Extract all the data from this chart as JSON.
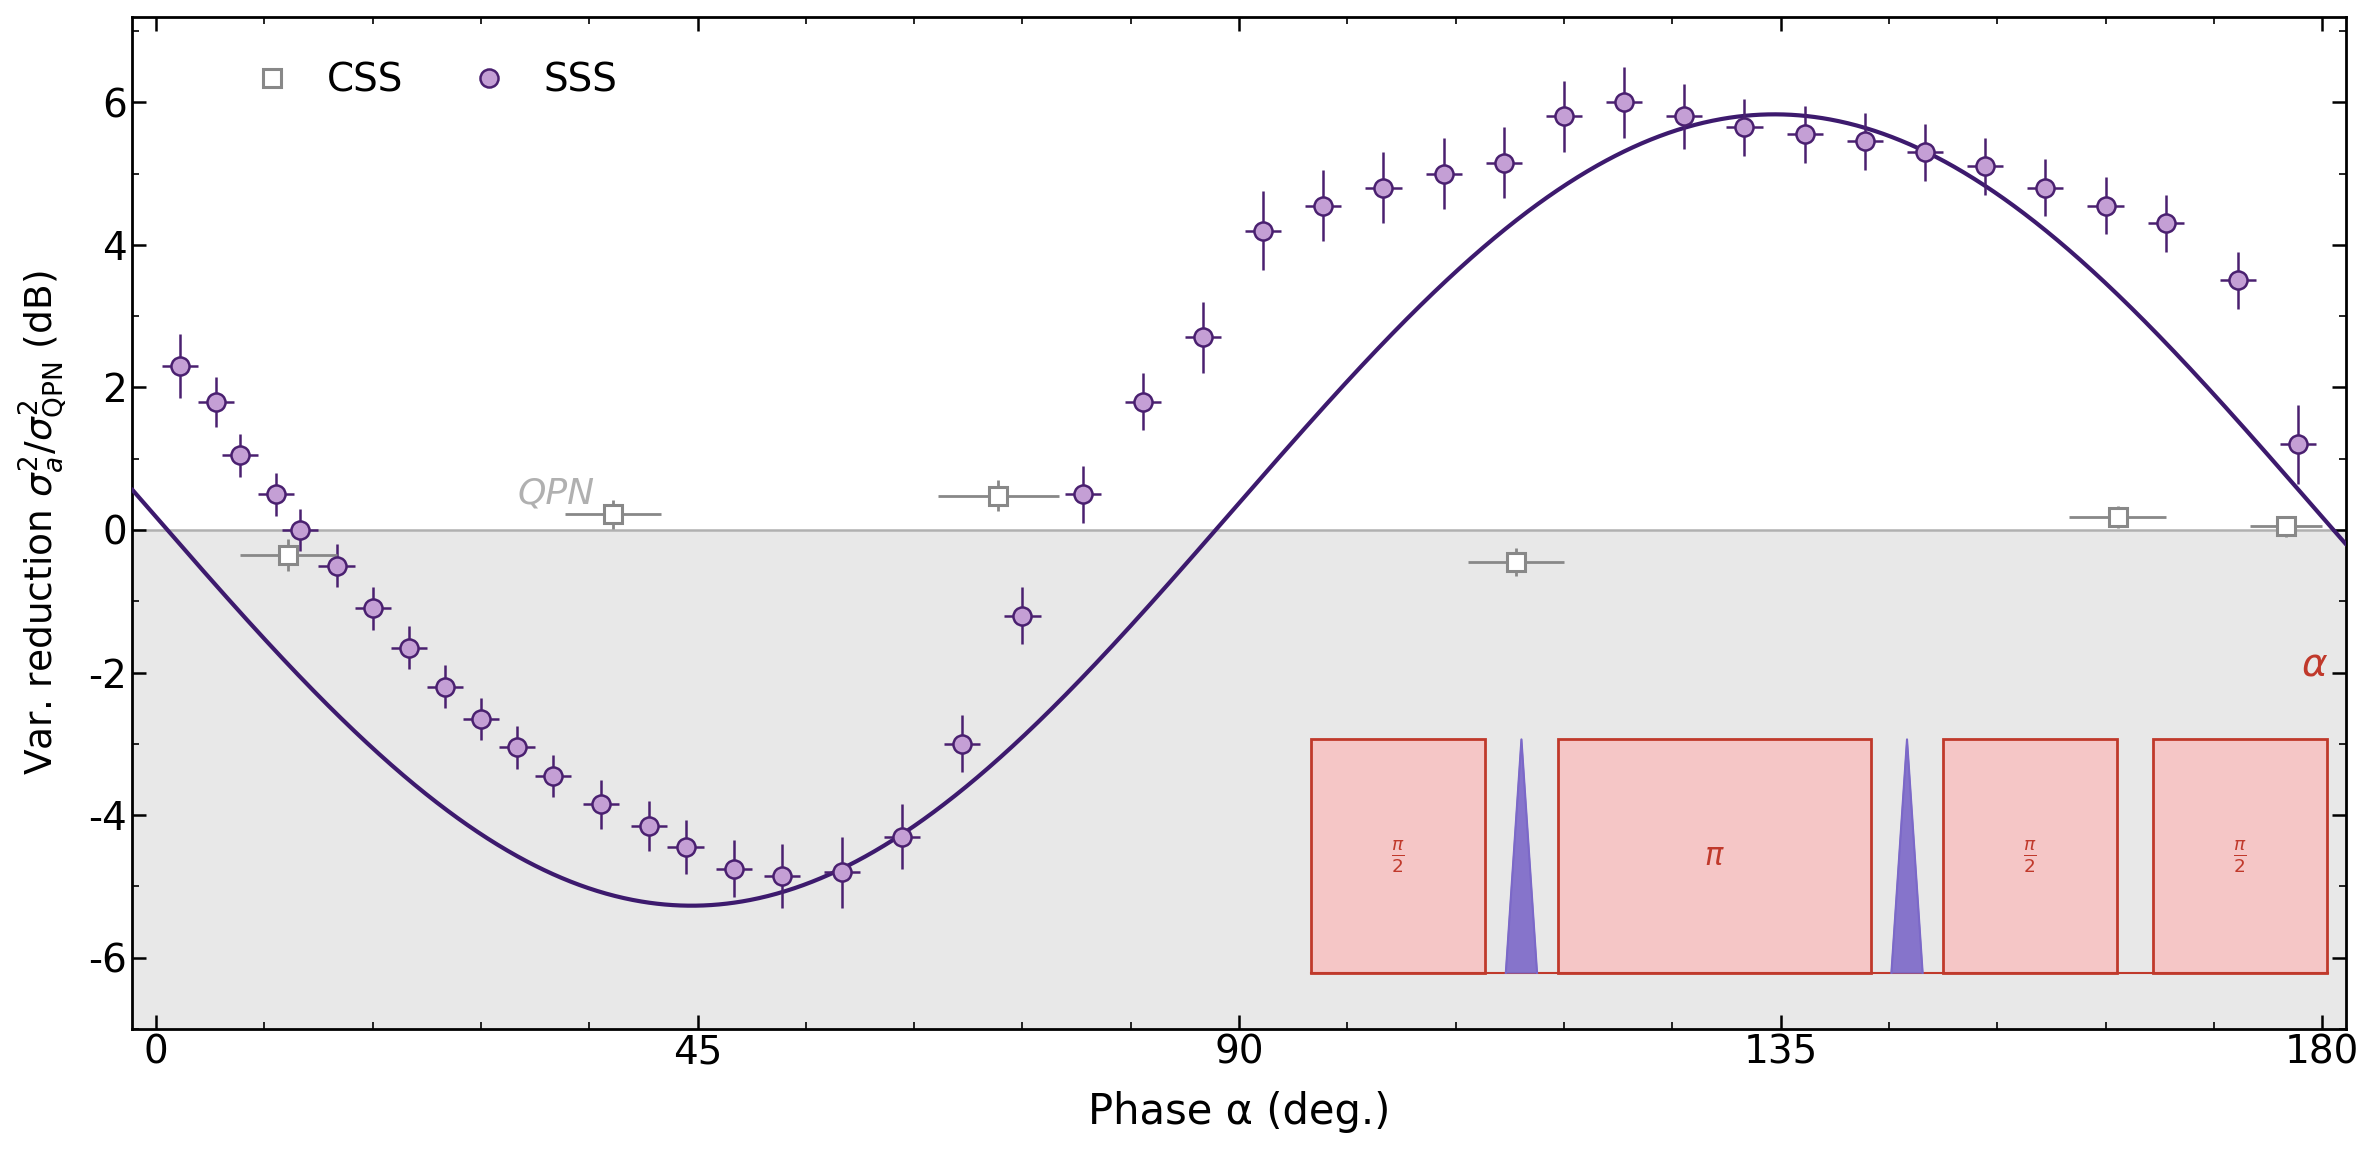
{
  "xlabel": "Phase α (deg.)",
  "xlim": [
    -2,
    182
  ],
  "ylim": [
    -7,
    7.2
  ],
  "yticks": [
    -6,
    -4,
    -2,
    0,
    2,
    4,
    6
  ],
  "xticks": [
    0,
    45,
    90,
    135,
    180
  ],
  "curve_color": "#3d1a6e",
  "sss_face_color": "#c49fd5",
  "sss_edge_color": "#4a2070",
  "css_edge_color": "#888888",
  "background_below": "#e8e8e8",
  "qpn_line_color": "#b0b0b0",
  "qpn_text_color": "#b0b0b0",
  "fit_A": -5.55,
  "fit_B": 0.28,
  "fit_x0": 44.5,
  "sss_x": [
    2,
    5,
    7,
    10,
    12,
    15,
    18,
    21,
    24,
    27,
    30,
    33,
    37,
    41,
    44,
    48,
    52,
    57,
    62,
    67,
    72,
    77,
    82,
    87,
    92,
    97,
    102,
    107,
    112,
    117,
    122,
    127,
    132,
    137,
    142,
    147,
    152,
    157,
    162,
    167,
    173,
    178
  ],
  "sss_y": [
    2.3,
    1.8,
    1.05,
    0.5,
    0.0,
    -0.5,
    -1.1,
    -1.65,
    -2.2,
    -2.65,
    -3.05,
    -3.45,
    -3.85,
    -4.15,
    -4.45,
    -4.75,
    -4.85,
    -4.8,
    -4.3,
    -3.0,
    -1.2,
    0.5,
    1.8,
    2.7,
    4.2,
    4.55,
    4.8,
    5.0,
    5.15,
    5.8,
    6.0,
    5.8,
    5.65,
    5.55,
    5.45,
    5.3,
    5.1,
    4.8,
    4.55,
    4.3,
    3.5,
    1.2
  ],
  "sss_yerr": [
    0.45,
    0.35,
    0.3,
    0.3,
    0.3,
    0.3,
    0.3,
    0.3,
    0.3,
    0.3,
    0.3,
    0.3,
    0.35,
    0.35,
    0.38,
    0.4,
    0.45,
    0.5,
    0.45,
    0.4,
    0.4,
    0.4,
    0.4,
    0.5,
    0.55,
    0.5,
    0.5,
    0.5,
    0.5,
    0.5,
    0.5,
    0.45,
    0.4,
    0.4,
    0.4,
    0.4,
    0.4,
    0.4,
    0.4,
    0.4,
    0.4,
    0.55
  ],
  "sss_xerr": [
    1.5,
    1.5,
    1.5,
    1.5,
    1.5,
    1.5,
    1.5,
    1.5,
    1.5,
    1.5,
    1.5,
    1.5,
    1.5,
    1.5,
    1.5,
    1.5,
    1.5,
    1.5,
    1.5,
    1.5,
    1.5,
    1.5,
    1.5,
    1.5,
    1.5,
    1.5,
    1.5,
    1.5,
    1.5,
    1.5,
    1.5,
    1.5,
    1.5,
    1.5,
    1.5,
    1.5,
    1.5,
    1.5,
    1.5,
    1.5,
    1.5,
    1.5
  ],
  "css_x": [
    11,
    38,
    70,
    113,
    163,
    177
  ],
  "css_y": [
    -0.35,
    0.22,
    0.48,
    -0.45,
    0.18,
    0.05
  ],
  "css_yerr": [
    0.22,
    0.2,
    0.22,
    0.2,
    0.15,
    0.15
  ],
  "css_xerr": [
    4,
    4,
    5,
    4,
    4,
    3
  ],
  "pulse_box_color": "#c0392b",
  "pulse_fill_color": "#f5c6c6",
  "pulse_wave_color": "#7b68c8",
  "alpha_label_color": "#c0392b"
}
